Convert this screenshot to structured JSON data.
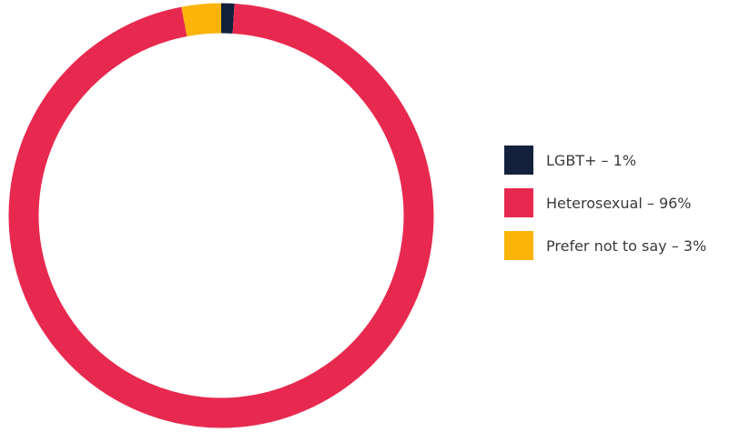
{
  "chart_data": {
    "type": "pie",
    "title": "",
    "categories": [
      "LGBT+",
      "Heterosexual",
      "Prefer not to say"
    ],
    "values": [
      1,
      96,
      3
    ],
    "colors": [
      "#14213d",
      "#e8294f",
      "#fbb40a"
    ],
    "legend": {
      "placement": "right",
      "items": [
        {
          "label": "LGBT+ – 1%",
          "color": "#14213d"
        },
        {
          "label": "Heterosexual – 96%",
          "color": "#e8294f"
        },
        {
          "label": "Prefer not to say – 3%",
          "color": "#fbb40a"
        }
      ]
    }
  }
}
